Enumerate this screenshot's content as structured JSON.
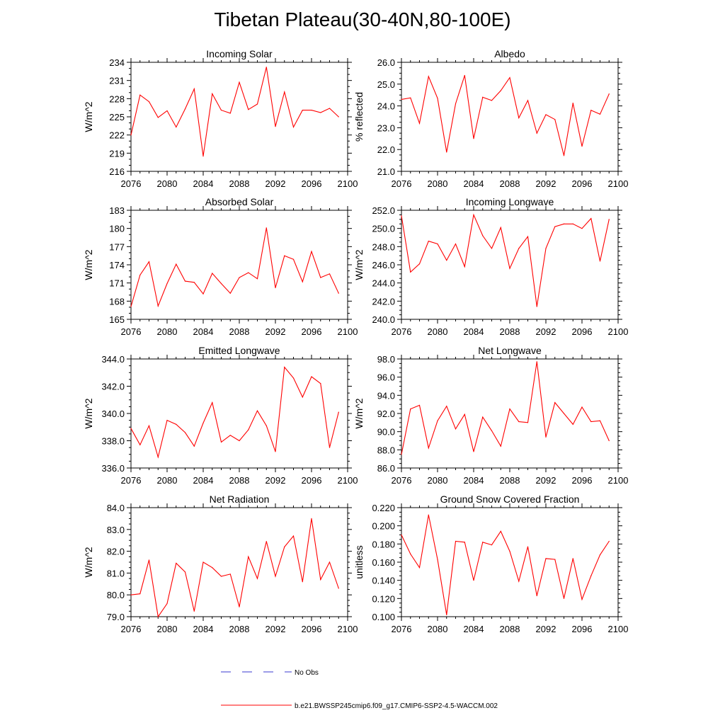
{
  "title": "Tibetan Plateau(30-40N,80-100E)",
  "legend": {
    "obs_label": "No Obs",
    "model_label": "b.e21.BWSSP245cmip6.f09_g17.CMIP6-SSP2-4.5-WACCM.002",
    "obs_color": "#3a3ad0",
    "model_color": "#ff0000"
  },
  "chart_data": [
    {
      "type": "line",
      "title": "Incoming Solar",
      "ylabel": "W/m^2",
      "xlim": [
        2076,
        2100
      ],
      "ylim": [
        216,
        234
      ],
      "xticks": [
        "2076",
        "2080",
        "2084",
        "2088",
        "2092",
        "2096",
        "2100"
      ],
      "yticks": [
        "216",
        "219",
        "222",
        "225",
        "228",
        "231",
        "234"
      ],
      "x": [
        2076,
        2077,
        2078,
        2079,
        2080,
        2081,
        2082,
        2083,
        2084,
        2085,
        2086,
        2087,
        2088,
        2089,
        2090,
        2091,
        2092,
        2093,
        2094,
        2095,
        2096,
        2097,
        2098,
        2099
      ],
      "values": [
        222.0,
        228.6,
        227.5,
        224.9,
        226.0,
        223.3,
        226.3,
        229.6,
        218.5,
        228.8,
        226.1,
        225.6,
        230.7,
        226.2,
        227.1,
        233.2,
        223.4,
        229.1,
        223.3,
        226.1,
        226.1,
        225.7,
        226.4,
        225.0
      ]
    },
    {
      "type": "line",
      "title": "Albedo",
      "ylabel": "% reflected",
      "xlim": [
        2076,
        2100
      ],
      "ylim": [
        21.0,
        26.0
      ],
      "xticks": [
        "2076",
        "2080",
        "2084",
        "2088",
        "2092",
        "2096",
        "2100"
      ],
      "yticks": [
        "21.0",
        "22.0",
        "23.0",
        "24.0",
        "25.0",
        "26.0"
      ],
      "x": [
        2076,
        2077,
        2078,
        2079,
        2080,
        2081,
        2082,
        2083,
        2084,
        2085,
        2086,
        2087,
        2088,
        2089,
        2090,
        2091,
        2092,
        2093,
        2094,
        2095,
        2096,
        2097,
        2098,
        2099
      ],
      "values": [
        24.3,
        24.37,
        23.2,
        25.35,
        24.35,
        21.88,
        24.1,
        25.4,
        22.5,
        24.4,
        24.25,
        24.7,
        25.3,
        23.45,
        24.25,
        22.75,
        23.6,
        23.38,
        21.72,
        24.13,
        22.15,
        23.8,
        23.62,
        24.55
      ]
    },
    {
      "type": "line",
      "title": "Absorbed Solar",
      "ylabel": "W/m^2",
      "xlim": [
        2076,
        2100
      ],
      "ylim": [
        165,
        183
      ],
      "xticks": [
        "2076",
        "2080",
        "2084",
        "2088",
        "2092",
        "2096",
        "2100"
      ],
      "yticks": [
        "165",
        "168",
        "171",
        "174",
        "177",
        "180",
        "183"
      ],
      "x": [
        2076,
        2077,
        2078,
        2079,
        2080,
        2081,
        2082,
        2083,
        2084,
        2085,
        2086,
        2087,
        2088,
        2089,
        2090,
        2091,
        2092,
        2093,
        2094,
        2095,
        2096,
        2097,
        2098,
        2099
      ],
      "values": [
        167.1,
        172.3,
        174.5,
        167.2,
        170.9,
        174.1,
        171.3,
        171.1,
        169.2,
        172.6,
        170.9,
        169.3,
        171.9,
        172.7,
        171.7,
        180.1,
        170.2,
        175.5,
        174.9,
        171.2,
        176.2,
        171.9,
        172.5,
        169.3
      ]
    },
    {
      "type": "line",
      "title": "Incoming Longwave",
      "ylabel": "W/m^2",
      "xlim": [
        2076,
        2100
      ],
      "ylim": [
        240.0,
        252.0
      ],
      "xticks": [
        "2076",
        "2080",
        "2084",
        "2088",
        "2092",
        "2096",
        "2100"
      ],
      "yticks": [
        "240.0",
        "242.0",
        "244.0",
        "246.0",
        "248.0",
        "250.0",
        "252.0"
      ],
      "x": [
        2076,
        2077,
        2078,
        2079,
        2080,
        2081,
        2082,
        2083,
        2084,
        2085,
        2086,
        2087,
        2088,
        2089,
        2090,
        2091,
        2092,
        2093,
        2094,
        2095,
        2096,
        2097,
        2098,
        2099
      ],
      "values": [
        251.4,
        245.2,
        246.1,
        248.6,
        248.3,
        246.5,
        248.3,
        245.8,
        251.5,
        249.2,
        247.8,
        250.1,
        245.6,
        247.8,
        249.1,
        241.4,
        247.8,
        250.2,
        250.5,
        250.5,
        250.0,
        251.1,
        246.4,
        251.0
      ]
    },
    {
      "type": "line",
      "title": "Emitted Longwave",
      "ylabel": "W/m^2",
      "xlim": [
        2076,
        2100
      ],
      "ylim": [
        336.0,
        344.0
      ],
      "xticks": [
        "2076",
        "2080",
        "2084",
        "2088",
        "2092",
        "2096",
        "2100"
      ],
      "yticks": [
        "336.0",
        "338.0",
        "340.0",
        "342.0",
        "344.0"
      ],
      "x": [
        2076,
        2077,
        2078,
        2079,
        2080,
        2081,
        2082,
        2083,
        2084,
        2085,
        2086,
        2087,
        2088,
        2089,
        2090,
        2091,
        2092,
        2093,
        2094,
        2095,
        2096,
        2097,
        2098,
        2099
      ],
      "values": [
        338.9,
        337.7,
        339.1,
        336.8,
        339.5,
        339.2,
        338.6,
        337.6,
        339.3,
        340.8,
        337.9,
        338.4,
        338.0,
        338.8,
        340.2,
        339.1,
        337.2,
        343.4,
        342.6,
        341.2,
        342.7,
        342.2,
        337.5,
        340.1
      ]
    },
    {
      "type": "line",
      "title": "Net Longwave",
      "ylabel": "W/m^2",
      "xlim": [
        2076,
        2100
      ],
      "ylim": [
        86.0,
        98.0
      ],
      "xticks": [
        "2076",
        "2080",
        "2084",
        "2088",
        "2092",
        "2096",
        "2100"
      ],
      "yticks": [
        "86.0",
        "88.0",
        "90.0",
        "92.0",
        "94.0",
        "96.0",
        "98.0"
      ],
      "x": [
        2076,
        2077,
        2078,
        2079,
        2080,
        2081,
        2082,
        2083,
        2084,
        2085,
        2086,
        2087,
        2088,
        2089,
        2090,
        2091,
        2092,
        2093,
        2094,
        2095,
        2096,
        2097,
        2098,
        2099
      ],
      "values": [
        87.5,
        92.5,
        92.9,
        88.2,
        91.2,
        92.8,
        90.3,
        91.9,
        87.8,
        91.6,
        90.1,
        88.4,
        92.5,
        91.1,
        91.0,
        97.7,
        89.4,
        93.2,
        92.0,
        90.8,
        92.7,
        91.1,
        91.2,
        89.0
      ]
    },
    {
      "type": "line",
      "title": "Net Radiation",
      "ylabel": "W/m^2",
      "xlim": [
        2076,
        2100
      ],
      "ylim": [
        79.0,
        84.0
      ],
      "xticks": [
        "2076",
        "2080",
        "2084",
        "2088",
        "2092",
        "2096",
        "2100"
      ],
      "yticks": [
        "79.0",
        "80.0",
        "81.0",
        "82.0",
        "83.0",
        "84.0"
      ],
      "x": [
        2076,
        2077,
        2078,
        2079,
        2080,
        2081,
        2082,
        2083,
        2084,
        2085,
        2086,
        2087,
        2088,
        2089,
        2090,
        2091,
        2092,
        2093,
        2094,
        2095,
        2096,
        2097,
        2098,
        2099
      ],
      "values": [
        80.0,
        80.05,
        81.6,
        79.0,
        79.6,
        81.45,
        81.05,
        79.25,
        81.5,
        81.25,
        80.85,
        80.95,
        79.45,
        81.75,
        80.75,
        82.45,
        80.85,
        82.2,
        82.7,
        80.6,
        83.5,
        80.7,
        81.5,
        80.3
      ]
    },
    {
      "type": "line",
      "title": "Ground Snow Covered Fraction",
      "ylabel": "unitless",
      "xlim": [
        2076,
        2100
      ],
      "ylim": [
        0.1,
        0.22
      ],
      "xticks": [
        "2076",
        "2080",
        "2084",
        "2088",
        "2092",
        "2096",
        "2100"
      ],
      "yticks": [
        "0.100",
        "0.120",
        "0.140",
        "0.160",
        "0.180",
        "0.200",
        "0.220"
      ],
      "x": [
        2076,
        2077,
        2078,
        2079,
        2080,
        2081,
        2082,
        2083,
        2084,
        2085,
        2086,
        2087,
        2088,
        2089,
        2090,
        2091,
        2092,
        2093,
        2094,
        2095,
        2096,
        2097,
        2098,
        2099
      ],
      "values": [
        0.19,
        0.169,
        0.154,
        0.212,
        0.163,
        0.102,
        0.183,
        0.182,
        0.14,
        0.182,
        0.179,
        0.194,
        0.172,
        0.139,
        0.177,
        0.123,
        0.164,
        0.163,
        0.12,
        0.164,
        0.119,
        0.145,
        0.168,
        0.183
      ]
    }
  ]
}
